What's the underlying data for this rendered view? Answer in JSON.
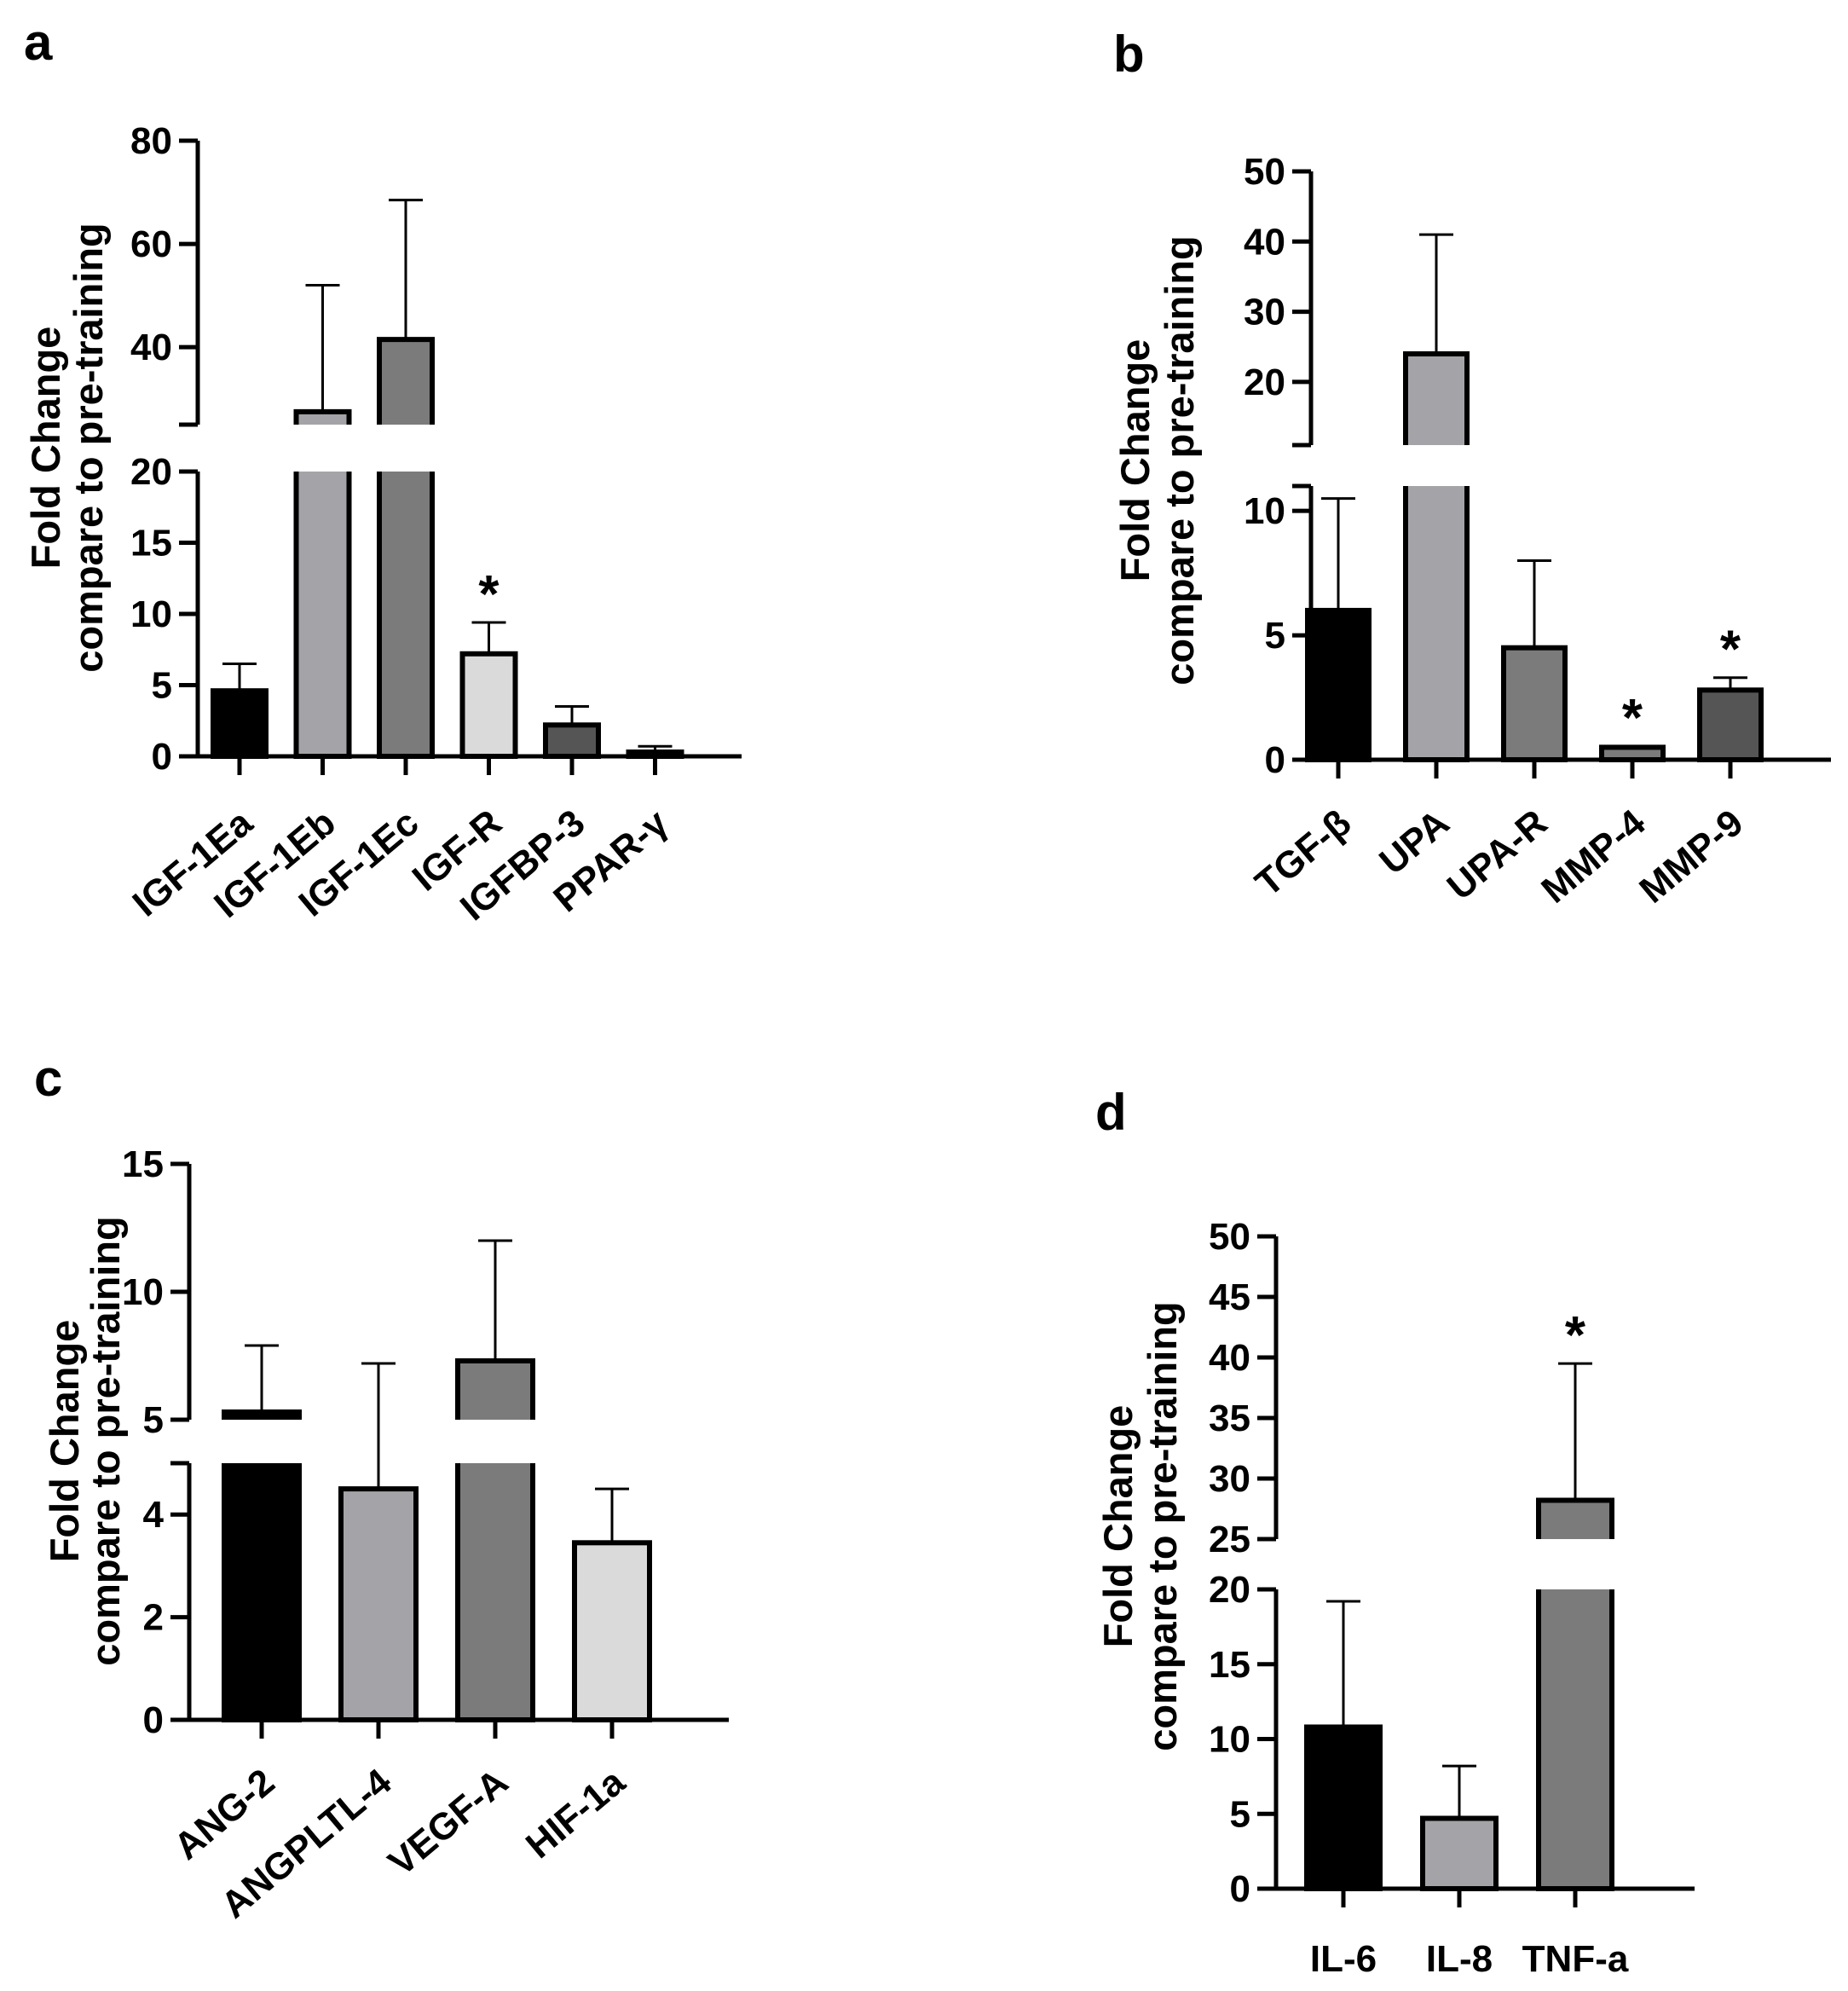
{
  "chart_data": [
    {
      "panel": "a",
      "type": "bar",
      "ylabel": [
        "Fold Change",
        "compare to pre-training"
      ],
      "categories": [
        "IGF-1Ea",
        "IGF-1Eb",
        "IGF-1Ec",
        "IGF-R",
        "IGFBP-3",
        "PPAR-γ"
      ],
      "values": [
        4.6,
        27.5,
        41.5,
        7.2,
        2.2,
        0.3
      ],
      "errors": [
        1.9,
        24.5,
        27.0,
        2.2,
        1.3,
        0.4
      ],
      "significant": [
        false,
        false,
        false,
        true,
        false,
        false
      ],
      "colors": [
        "#000000",
        "#a4a4a8",
        "#7b7b7b",
        "#dadada",
        "#555555",
        "#a4a4a8"
      ],
      "axis_break": {
        "lower": [
          0,
          20
        ],
        "upper": [
          25,
          80
        ]
      },
      "yticks_lower": [
        0,
        5,
        10,
        15,
        20
      ],
      "yticks_upper": [
        40,
        60,
        80
      ]
    },
    {
      "panel": "b",
      "type": "bar",
      "ylabel": [
        "Fold Change",
        "compare to pre-training"
      ],
      "categories": [
        "TGF-β",
        "UPA",
        "UPA-R",
        "MMP-4",
        "MMP-9"
      ],
      "values": [
        6.0,
        24.0,
        4.5,
        0.5,
        2.8
      ],
      "errors": [
        4.5,
        17.0,
        3.5,
        0.05,
        0.5
      ],
      "significant": [
        false,
        false,
        false,
        true,
        true
      ],
      "colors": [
        "#000000",
        "#a4a4a8",
        "#7b7b7b",
        "#7b7b7b",
        "#555555"
      ],
      "axis_break": {
        "lower": [
          0,
          11
        ],
        "upper": [
          11,
          50
        ]
      },
      "yticks_lower": [
        0,
        5,
        10
      ],
      "yticks_upper": [
        20,
        30,
        40,
        50
      ]
    },
    {
      "panel": "c",
      "type": "bar",
      "ylabel": [
        "Fold Change",
        "compare to pre-training"
      ],
      "categories": [
        "ANG-2",
        "ANGPLTL-4",
        "VEGF-A",
        "HIF-1a"
      ],
      "values": [
        5.3,
        4.5,
        7.3,
        3.45
      ],
      "errors": [
        2.6,
        2.7,
        4.7,
        1.05
      ],
      "significant": [
        false,
        false,
        false,
        false
      ],
      "colors": [
        "#000000",
        "#a4a4a8",
        "#7b7b7b",
        "#dadada"
      ],
      "axis_break": {
        "lower": [
          0,
          5
        ],
        "upper": [
          5,
          15
        ]
      },
      "yticks_lower": [
        0,
        2,
        4
      ],
      "yticks_upper": [
        5,
        10,
        15
      ]
    },
    {
      "panel": "d",
      "type": "bar",
      "ylabel": [
        "Fold Change",
        "compare to pre-training"
      ],
      "categories": [
        "IL-6",
        "IL-8",
        "TNF-a"
      ],
      "values": [
        10.8,
        4.7,
        28.2
      ],
      "errors": [
        8.4,
        3.5,
        11.3
      ],
      "significant": [
        false,
        false,
        true
      ],
      "colors": [
        "#000000",
        "#a4a4a8",
        "#7b7b7b"
      ],
      "axis_break": {
        "lower": [
          0,
          20
        ],
        "upper": [
          25,
          50
        ]
      },
      "yticks_lower": [
        0,
        5,
        10,
        15,
        20
      ],
      "yticks_upper": [
        25,
        30,
        35,
        40,
        45,
        50
      ]
    }
  ]
}
